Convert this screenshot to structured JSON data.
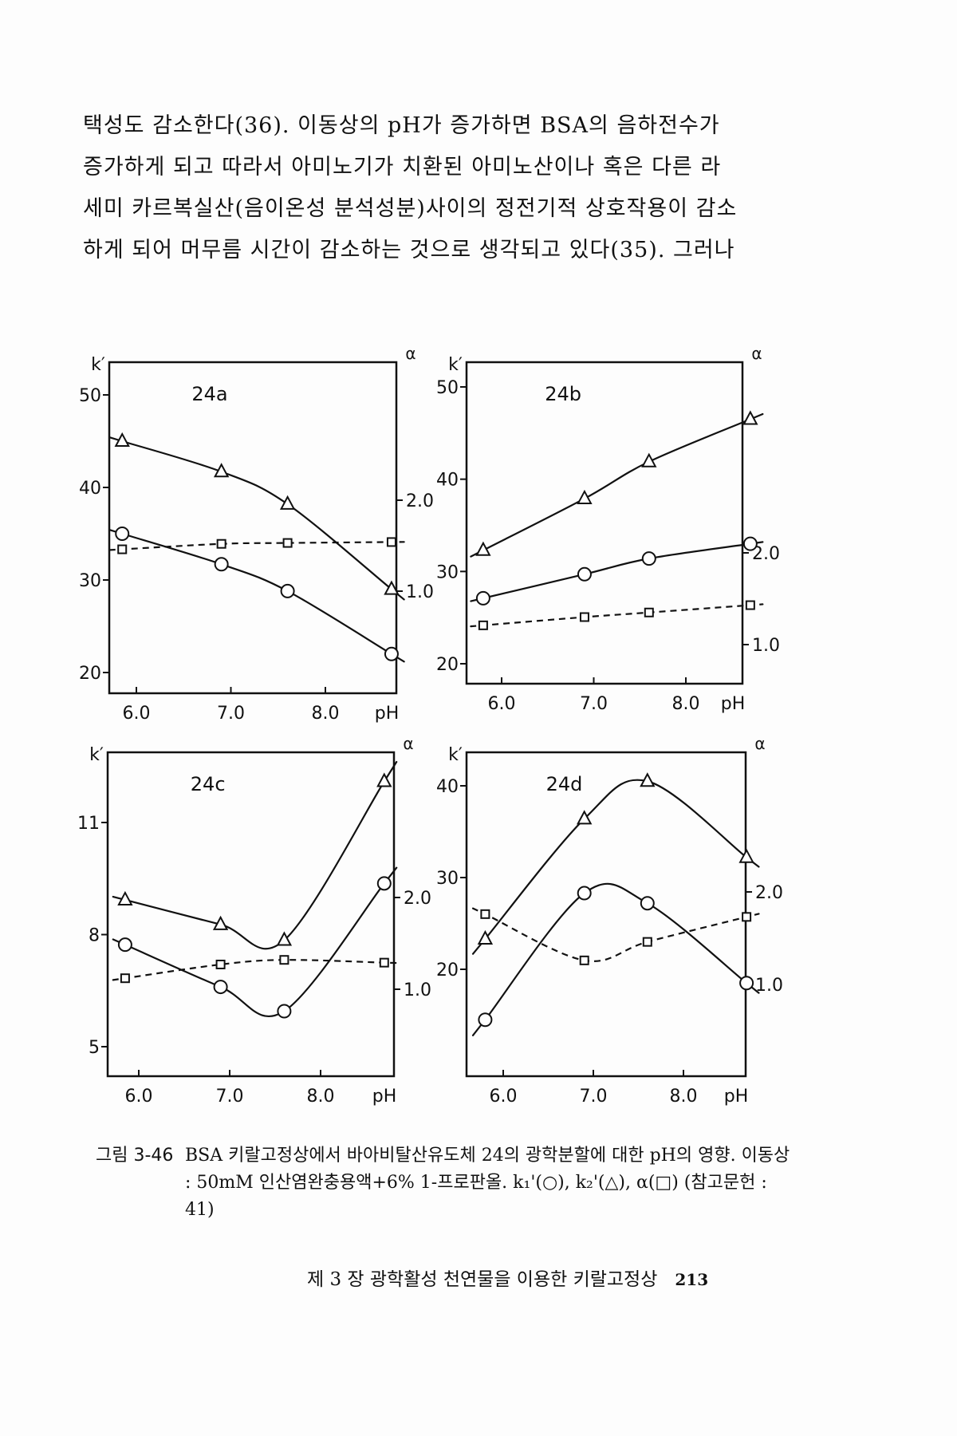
{
  "paragraph": [
    "택성도 감소한다(36). 이동상의 pH가 증가하면 BSA의 음하전수가",
    "증가하게 되고 따라서 아미노기가 치환된 아미노산이나 혹은 다른 라",
    "세미 카르복실산(음이온성 분석성분)사이의 정전기적 상호작용이 감소",
    "하게 되어 머무름 시간이 감소하는 것으로 생각되고 있다(35). 그러나"
  ],
  "caption": {
    "label": "그림 3-46",
    "text": "BSA 키랄고정상에서 바아비탈산유도체 24의 광학분할에 대한 pH의 영향. 이동상 : 50mM 인산염완충용액+6% 1-프로판올. k₁'(○), k₂'(△), α(□) (참고문헌 : 41)"
  },
  "footer": {
    "chapter": "제 3 장  광학활성 천연물을 이용한 키랄고정상",
    "page_number": "213"
  },
  "chart_data": [
    {
      "type": "line",
      "title": "24a",
      "xlabel": "pH",
      "ylabel": "k′",
      "y2label": "α",
      "xticks": [
        "6.0",
        "7.0",
        "8.0"
      ],
      "yticks": [
        "20",
        "30",
        "40",
        "50"
      ],
      "y2ticks": [
        "1.0",
        "2.0"
      ],
      "series": [
        {
          "name": "k2' (triangle)",
          "x": [
            5.85,
            6.9,
            7.6,
            8.7
          ],
          "y": [
            45,
            41.7,
            38.2,
            29
          ],
          "axis": "left",
          "marker": "triangle"
        },
        {
          "name": "k1' (circle)",
          "x": [
            5.85,
            6.9,
            7.6,
            8.7
          ],
          "y": [
            35,
            31.7,
            28.8,
            22
          ],
          "axis": "left",
          "marker": "circle"
        },
        {
          "name": "alpha (square)",
          "x": [
            5.85,
            6.9,
            7.6,
            8.7
          ],
          "y": [
            1.46,
            1.52,
            1.53,
            1.54
          ],
          "axis": "right",
          "marker": "square",
          "dashed": true
        }
      ]
    },
    {
      "type": "line",
      "title": "24b",
      "xlabel": "pH",
      "ylabel": "k′",
      "y2label": "α",
      "xticks": [
        "6.0",
        "7.0",
        "8.0"
      ],
      "yticks": [
        "20",
        "30",
        "40",
        "50"
      ],
      "y2ticks": [
        "1.0",
        "2.0"
      ],
      "series": [
        {
          "name": "k2' (triangle)",
          "x": [
            5.8,
            6.9,
            7.6,
            8.7
          ],
          "y": [
            32.3,
            37.9,
            41.9,
            46.5
          ],
          "axis": "left",
          "marker": "triangle"
        },
        {
          "name": "k1' (circle)",
          "x": [
            5.8,
            6.9,
            7.6,
            8.7
          ],
          "y": [
            27.1,
            29.7,
            31.4,
            33
          ],
          "axis": "left",
          "marker": "circle"
        },
        {
          "name": "alpha (square)",
          "x": [
            5.8,
            6.9,
            7.6,
            8.7
          ],
          "y": [
            1.21,
            1.3,
            1.35,
            1.43
          ],
          "axis": "right",
          "marker": "square",
          "dashed": true
        }
      ]
    },
    {
      "type": "line",
      "title": "24c",
      "xlabel": "pH",
      "ylabel": "k′",
      "y2label": "α",
      "xticks": [
        "6.0",
        "7.0",
        "8.0"
      ],
      "yticks": [
        "5",
        "8",
        "11"
      ],
      "y2ticks": [
        "1.0",
        "2.0"
      ],
      "series": [
        {
          "name": "k2' (triangle)",
          "x": [
            5.85,
            6.9,
            7.6,
            8.7
          ],
          "y": [
            8.93,
            8.27,
            7.85,
            12.1
          ],
          "axis": "left",
          "marker": "triangle"
        },
        {
          "name": "k1' (circle)",
          "x": [
            5.85,
            6.9,
            7.6,
            8.7
          ],
          "y": [
            7.73,
            6.6,
            5.95,
            9.37
          ],
          "axis": "left",
          "marker": "circle"
        },
        {
          "name": "alpha (square)",
          "x": [
            5.85,
            6.9,
            7.6,
            8.7
          ],
          "y": [
            1.12,
            1.27,
            1.32,
            1.29
          ],
          "axis": "right",
          "marker": "square",
          "dashed": true
        }
      ]
    },
    {
      "type": "line",
      "title": "24d",
      "xlabel": "pH",
      "ylabel": "k′",
      "y2label": "α",
      "xticks": [
        "6.0",
        "7.0",
        "8.0"
      ],
      "yticks": [
        "20",
        "30",
        "40"
      ],
      "y2ticks": [
        "1.0",
        "2.0"
      ],
      "series": [
        {
          "name": "k2' (triangle)",
          "x": [
            5.8,
            6.9,
            7.6,
            8.7
          ],
          "y": [
            23.3,
            36.4,
            40.5,
            32.2
          ],
          "axis": "left",
          "marker": "triangle"
        },
        {
          "name": "k1' (circle)",
          "x": [
            5.8,
            6.9,
            7.6,
            8.7
          ],
          "y": [
            14.5,
            28.3,
            27.2,
            18.5
          ],
          "axis": "left",
          "marker": "circle"
        },
        {
          "name": "alpha (square)",
          "x": [
            5.8,
            6.9,
            7.6,
            8.7
          ],
          "y": [
            1.76,
            1.26,
            1.46,
            1.73
          ],
          "axis": "right",
          "marker": "square",
          "dashed": true
        }
      ]
    }
  ]
}
